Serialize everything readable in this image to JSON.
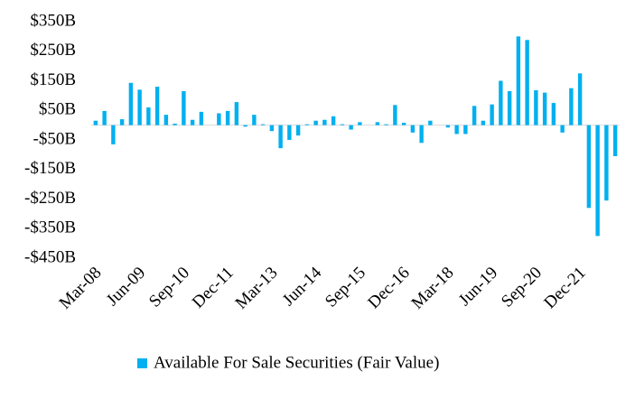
{
  "chart_data": {
    "type": "bar",
    "categories": [
      "Mar-08",
      null,
      null,
      null,
      null,
      "Jun-09",
      null,
      null,
      null,
      null,
      "Sep-10",
      null,
      null,
      null,
      null,
      "Dec-11",
      null,
      null,
      null,
      null,
      "Mar-13",
      null,
      null,
      null,
      null,
      "Jun-14",
      null,
      null,
      null,
      null,
      "Sep-15",
      null,
      null,
      null,
      null,
      "Dec-16",
      null,
      null,
      null,
      null,
      "Mar-18",
      null,
      null,
      null,
      null,
      "Jun-19",
      null,
      null,
      null,
      null,
      "Sep-20",
      null,
      null,
      null,
      null,
      "Dec-21",
      null,
      null,
      null,
      null
    ],
    "series": [
      {
        "name": "Available For Sale Securities (Fair Value)",
        "color": "#00b0f0",
        "values": [
          15,
          48,
          -65,
          20,
          143,
          120,
          60,
          130,
          35,
          5,
          115,
          18,
          45,
          0,
          40,
          48,
          78,
          -5,
          35,
          3,
          -20,
          -78,
          -50,
          -35,
          3,
          15,
          18,
          30,
          3,
          -15,
          10,
          0,
          10,
          3,
          68,
          8,
          -25,
          -60,
          15,
          0,
          -8,
          -30,
          -30,
          65,
          15,
          70,
          150,
          115,
          300,
          288,
          118,
          110,
          75,
          -25,
          125,
          175,
          -280,
          -375,
          -255,
          -105
        ]
      }
    ],
    "ylim": [
      -450,
      350
    ],
    "yticks": [
      {
        "value": 350,
        "label": "$350B"
      },
      {
        "value": 250,
        "label": "$250B"
      },
      {
        "value": 150,
        "label": "$150B"
      },
      {
        "value": 50,
        "label": "$50B"
      },
      {
        "value": -50,
        "label": "-$50B"
      },
      {
        "value": -150,
        "label": "-$150B"
      },
      {
        "value": -250,
        "label": "-$250B"
      },
      {
        "value": -350,
        "label": "-$350B"
      },
      {
        "value": -450,
        "label": "-$450B"
      }
    ],
    "legend": "bottom"
  }
}
